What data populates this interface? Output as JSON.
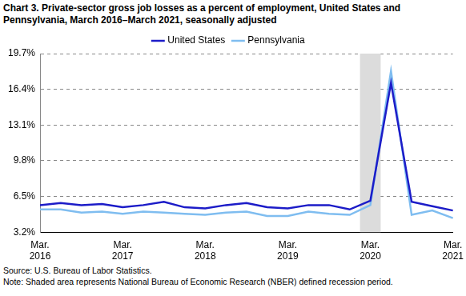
{
  "chart_data": {
    "type": "line",
    "title": "Chart 3. Private-sector gross job losses as a percent of employment, United States and Pennsylvania, March 2016–March 2021, seasonally adjusted",
    "categories": [
      "Mar. 2016",
      null,
      null,
      null,
      "Mar. 2017",
      null,
      null,
      null,
      "Mar. 2018",
      null,
      null,
      null,
      "Mar. 2019",
      null,
      null,
      null,
      "Mar. 2020",
      null,
      null,
      null,
      "Mar. 2021"
    ],
    "series": [
      {
        "name": "United States",
        "color": "#1c1cc8",
        "values": [
          5.7,
          5.9,
          5.7,
          5.8,
          5.5,
          5.7,
          6.0,
          5.5,
          5.4,
          5.7,
          5.9,
          5.5,
          5.4,
          5.7,
          5.7,
          5.3,
          6.1,
          17.0,
          6.0,
          5.6,
          5.2
        ]
      },
      {
        "name": "Pennsylvania",
        "color": "#7fbdf0",
        "values": [
          5.3,
          5.3,
          5.0,
          5.1,
          4.9,
          5.1,
          5.0,
          4.9,
          4.8,
          5.0,
          5.1,
          4.7,
          4.7,
          5.1,
          4.9,
          4.8,
          5.7,
          18.1,
          4.8,
          5.2,
          4.5
        ]
      }
    ],
    "ylim": [
      3.2,
      19.7
    ],
    "yticks": [
      {
        "value": 3.2,
        "label": "3.2%"
      },
      {
        "value": 6.5,
        "label": "6.5%"
      },
      {
        "value": 9.8,
        "label": "9.8%"
      },
      {
        "value": 13.1,
        "label": "13.1%"
      },
      {
        "value": 16.4,
        "label": "16.4%"
      },
      {
        "value": 19.7,
        "label": "19.7%"
      }
    ],
    "grid": true,
    "legend": "top",
    "recession_shading": {
      "from": 15.5,
      "to": 16.5
    },
    "source": "Source: U.S. Bureau of Labor Statistics.",
    "note": "Note: Shaded area represents National Bureau of Economic Research (NBER) defined recession period."
  }
}
